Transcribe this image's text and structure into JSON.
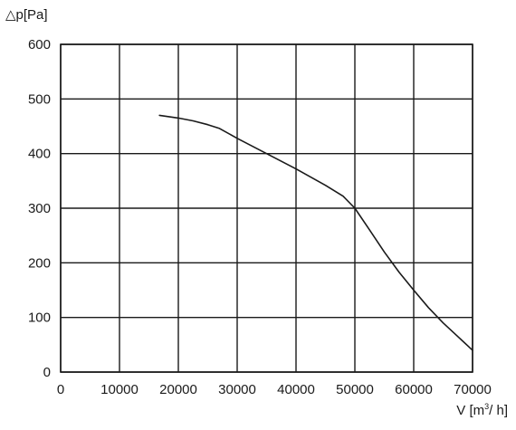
{
  "chart_data": {
    "type": "line",
    "title": "",
    "ylabel": "△p[Pa]",
    "xlabel": {
      "prefix": "V [m",
      "sup": "3",
      "suffix": "/ h]"
    },
    "xlim": [
      0,
      70000
    ],
    "ylim": [
      0,
      600
    ],
    "xticks": [
      0,
      10000,
      20000,
      30000,
      40000,
      50000,
      60000,
      70000
    ],
    "yticks": [
      0,
      100,
      200,
      300,
      400,
      500,
      600
    ],
    "grid": true,
    "series": [
      {
        "points": [
          [
            16800,
            470
          ],
          [
            20000,
            465
          ],
          [
            22500,
            460
          ],
          [
            25000,
            453
          ],
          [
            27000,
            446
          ],
          [
            30000,
            428
          ],
          [
            35000,
            400
          ],
          [
            40000,
            372
          ],
          [
            45000,
            342
          ],
          [
            48000,
            322
          ],
          [
            50000,
            300
          ],
          [
            52500,
            260
          ],
          [
            55000,
            220
          ],
          [
            57500,
            183
          ],
          [
            60000,
            150
          ],
          [
            62500,
            118
          ],
          [
            65000,
            90
          ],
          [
            67500,
            65
          ],
          [
            70000,
            40
          ]
        ],
        "color": "#1a1a1a"
      }
    ]
  }
}
